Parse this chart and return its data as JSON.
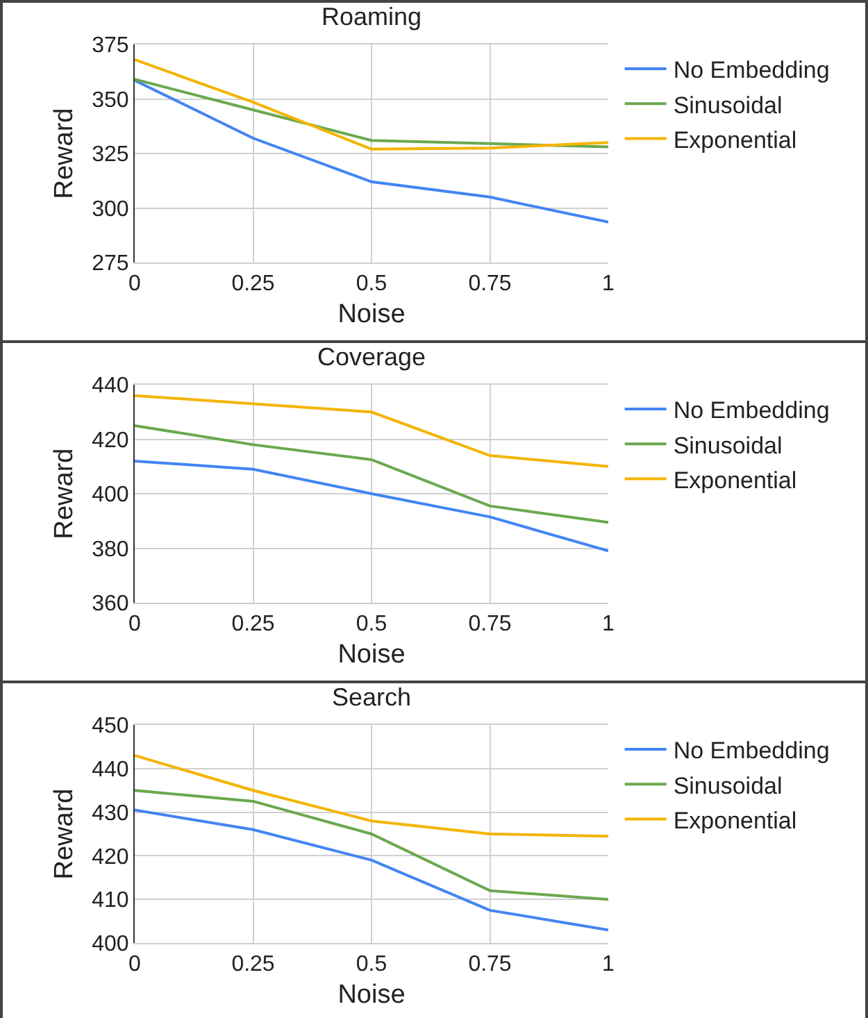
{
  "chart_data": [
    {
      "type": "line",
      "title": "Roaming",
      "xlabel": "Noise",
      "ylabel": "Reward",
      "x": [
        0,
        0.25,
        0.5,
        0.75,
        1
      ],
      "xlim": [
        0,
        1
      ],
      "xticks": [
        0,
        0.25,
        0.5,
        0.75,
        1
      ],
      "ylim": [
        275,
        375
      ],
      "yticks": [
        275,
        300,
        325,
        350,
        375
      ],
      "grid": true,
      "legend": "top right",
      "marker": "none",
      "line_style": "solid",
      "series": [
        {
          "name": "No Embedding",
          "color": "#4285f4",
          "values": [
            358.5,
            332,
            312,
            305,
            293.5
          ]
        },
        {
          "name": "Sinusoidal",
          "color": "#6aa84f",
          "values": [
            359,
            345,
            331,
            329.5,
            328
          ]
        },
        {
          "name": "Exponential",
          "color": "#f4b400",
          "values": [
            368,
            348.5,
            327,
            327.5,
            330
          ]
        }
      ]
    },
    {
      "type": "line",
      "title": "Coverage",
      "xlabel": "Noise",
      "ylabel": "Reward",
      "x": [
        0,
        0.25,
        0.5,
        0.75,
        1
      ],
      "xlim": [
        0,
        1
      ],
      "xticks": [
        0,
        0.25,
        0.5,
        0.75,
        1
      ],
      "ylim": [
        360,
        440
      ],
      "yticks": [
        360,
        380,
        400,
        420,
        440
      ],
      "grid": true,
      "legend": "top right",
      "marker": "none",
      "line_style": "solid",
      "series": [
        {
          "name": "No Embedding",
          "color": "#4285f4",
          "values": [
            412,
            409,
            400,
            391.5,
            379
          ]
        },
        {
          "name": "Sinusoidal",
          "color": "#6aa84f",
          "values": [
            425,
            418,
            412.5,
            395.5,
            389.5
          ]
        },
        {
          "name": "Exponential",
          "color": "#f4b400",
          "values": [
            436,
            433,
            430,
            414,
            410
          ]
        }
      ]
    },
    {
      "type": "line",
      "title": "Search",
      "xlabel": "Noise",
      "ylabel": "Reward",
      "x": [
        0,
        0.25,
        0.5,
        0.75,
        1
      ],
      "xlim": [
        0,
        1
      ],
      "xticks": [
        0,
        0.25,
        0.5,
        0.75,
        1
      ],
      "ylim": [
        400,
        450
      ],
      "yticks": [
        400,
        410,
        420,
        430,
        440,
        450
      ],
      "grid": true,
      "legend": "top right",
      "marker": "none",
      "line_style": "solid",
      "series": [
        {
          "name": "No Embedding",
          "color": "#4285f4",
          "values": [
            430.5,
            426,
            419,
            407.5,
            403
          ]
        },
        {
          "name": "Sinusoidal",
          "color": "#6aa84f",
          "values": [
            435,
            432.5,
            425,
            412,
            410
          ]
        },
        {
          "name": "Exponential",
          "color": "#f4b400",
          "values": [
            443,
            435,
            428,
            425,
            424.5
          ]
        }
      ]
    }
  ]
}
